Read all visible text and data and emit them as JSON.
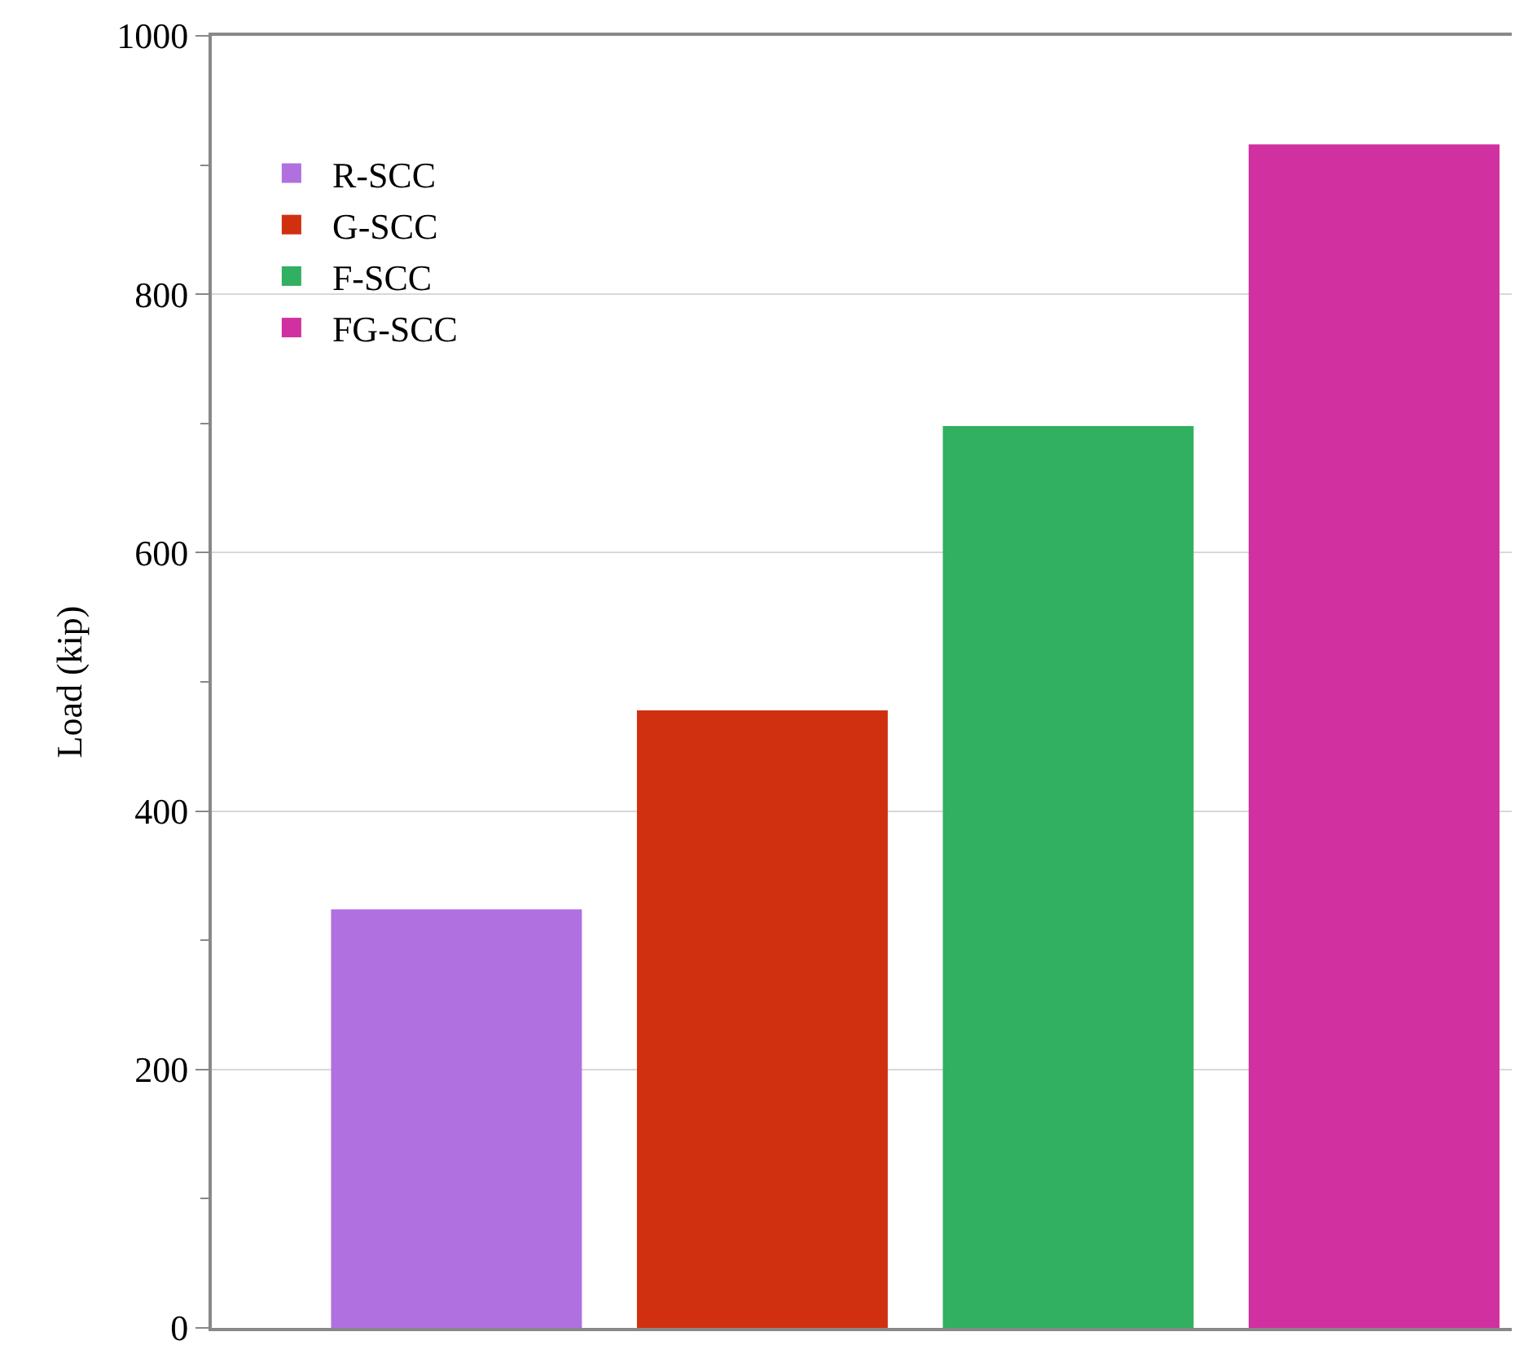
{
  "chart_data": {
    "type": "bar",
    "ylabel": "Load (kip)",
    "categories": [
      null,
      null,
      null,
      null
    ],
    "series": [
      {
        "name": "R-SCC",
        "color": "#b070e0",
        "values": [
          324,
          null,
          null,
          null
        ]
      },
      {
        "name": "G-SCC",
        "color": "#d03010",
        "values": [
          null,
          478,
          null,
          null
        ]
      },
      {
        "name": "F-SCC",
        "color": "#30b060",
        "values": [
          null,
          null,
          698,
          null
        ]
      },
      {
        "name": "FG-SCC",
        "color": "#d030a0",
        "values": [
          null,
          null,
          null,
          916
        ]
      }
    ],
    "ylim": [
      0,
      1000
    ],
    "yticks": [
      0,
      200,
      400,
      600,
      800,
      1000
    ],
    "grid": "y",
    "legend": "top left",
    "tick_labels": "y"
  }
}
